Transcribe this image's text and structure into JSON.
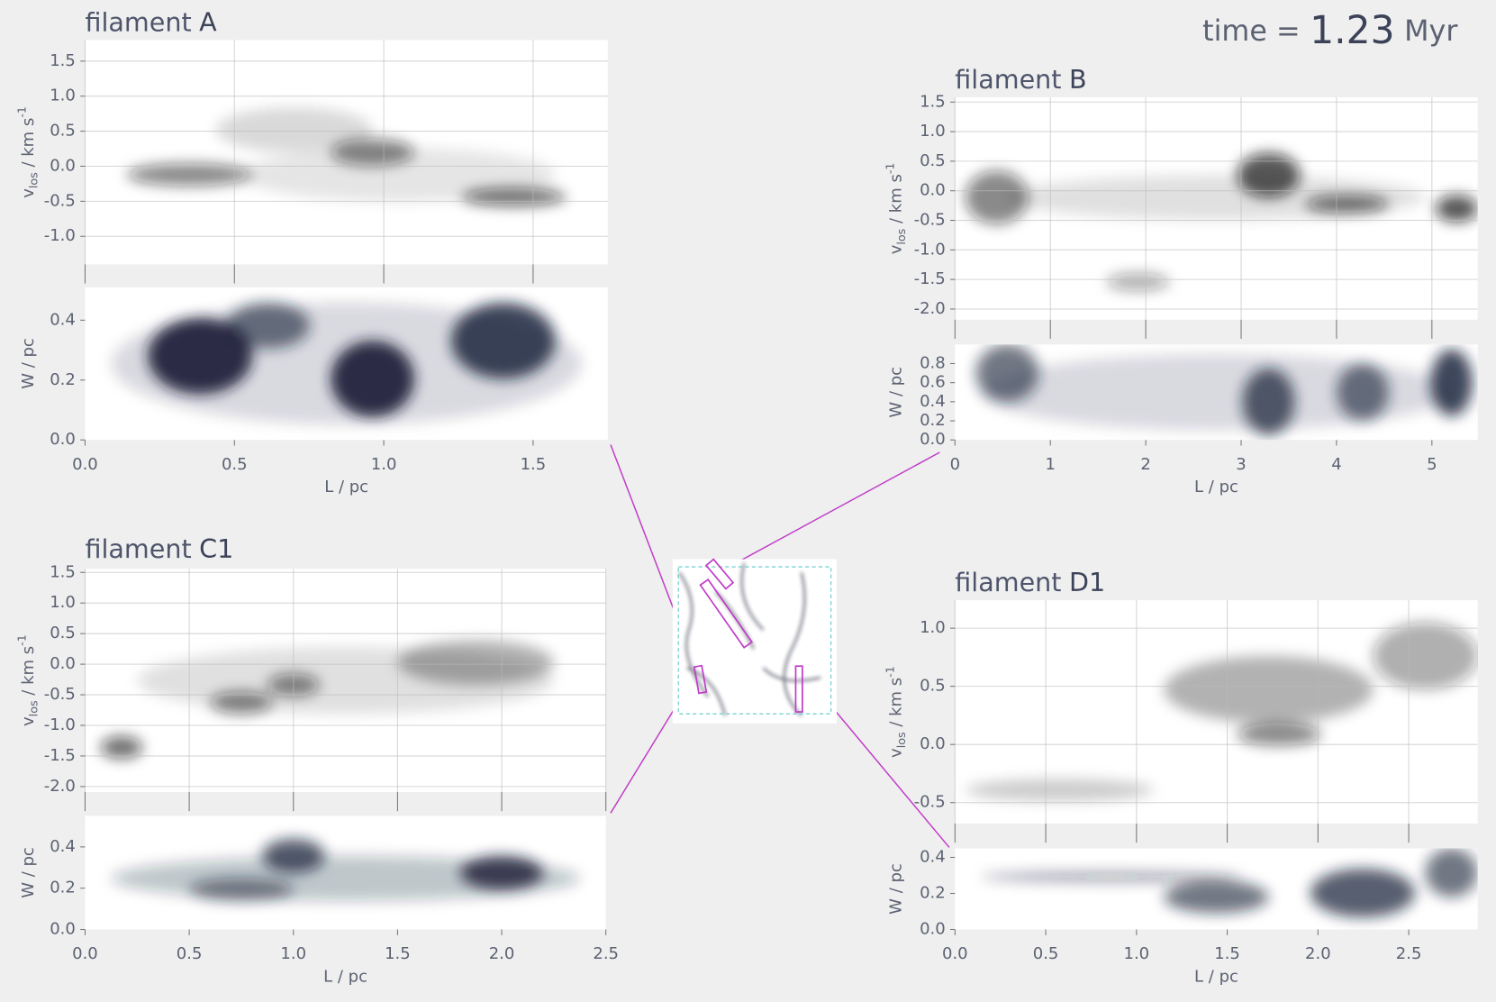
{
  "time_label": "time =",
  "time_value": 1.23,
  "time_unit": "Myr",
  "chart_data": [
    {
      "type": "image",
      "title_prefix": "filament",
      "title": "A",
      "xlabel": "L / pc",
      "xlim": [
        0,
        1.75
      ],
      "xticks": [
        {
          "value": 0,
          "label": "0.0"
        },
        0.5,
        {
          "value": 1,
          "label": "1.0"
        },
        1.5
      ],
      "panels": [
        {
          "ylabel": {
            "main": "v",
            "sub": "los",
            "rest": " / km s",
            "sup": "-1"
          },
          "ylim": [
            -1.4,
            1.8
          ],
          "grid": true,
          "yticks": [
            1.5,
            {
              "value": 1,
              "label": "1.0"
            },
            0.5,
            {
              "value": 0,
              "label": "0.0"
            },
            -0.5,
            {
              "value": -1,
              "label": "-1.0"
            }
          ]
        },
        {
          "ylabel": {
            "main": "W / pc"
          },
          "ylim": [
            0,
            0.51
          ],
          "grid": false,
          "yticks": [
            {
              "value": 0,
              "label": "0.0"
            },
            0.2,
            0.4
          ]
        }
      ]
    },
    {
      "type": "image",
      "title_prefix": "filament",
      "title": "B",
      "xlabel": "L / pc",
      "xlim": [
        0,
        5.48
      ],
      "xticks": [
        0,
        1,
        2,
        3,
        4,
        5
      ],
      "panels": [
        {
          "ylabel": {
            "main": "v",
            "sub": "los",
            "rest": " / km s",
            "sup": "-1"
          },
          "ylim": [
            -2.18,
            1.58
          ],
          "grid": true,
          "yticks": [
            1.5,
            {
              "value": 1,
              "label": "1.0"
            },
            0.5,
            {
              "value": 0,
              "label": "0.0"
            },
            -0.5,
            {
              "value": -1,
              "label": "-1.0"
            },
            -1.5,
            {
              "value": -2,
              "label": "-2.0"
            }
          ]
        },
        {
          "ylabel": {
            "main": "W / pc"
          },
          "ylim": [
            0,
            1.0
          ],
          "grid": false,
          "yticks": [
            {
              "value": 0,
              "label": "0.0"
            },
            0.2,
            0.4,
            0.6,
            0.8
          ]
        }
      ]
    },
    {
      "type": "image",
      "title_prefix": "filament",
      "title": "C1",
      "xlabel": "L / pc",
      "xlim": [
        0,
        2.5
      ],
      "xticks": [
        {
          "value": 0,
          "label": "0.0"
        },
        0.5,
        {
          "value": 1,
          "label": "1.0"
        },
        1.5,
        {
          "value": 2,
          "label": "2.0"
        },
        2.5
      ],
      "panels": [
        {
          "ylabel": {
            "main": "v",
            "sub": "los",
            "rest": " / km s",
            "sup": "-1"
          },
          "ylim": [
            -2.09,
            1.56
          ],
          "grid": true,
          "yticks": [
            1.5,
            {
              "value": 1,
              "label": "1.0"
            },
            0.5,
            {
              "value": 0,
              "label": "0.0"
            },
            -0.5,
            {
              "value": -1,
              "label": "-1.0"
            },
            -1.5,
            {
              "value": -2,
              "label": "-2.0"
            }
          ]
        },
        {
          "ylabel": {
            "main": "W / pc"
          },
          "ylim": [
            0,
            0.55
          ],
          "grid": false,
          "yticks": [
            {
              "value": 0,
              "label": "0.0"
            },
            0.2,
            0.4
          ]
        }
      ]
    },
    {
      "type": "image",
      "title_prefix": "filament",
      "title": "D1",
      "xlabel": "L / pc",
      "xlim": [
        0,
        2.88
      ],
      "xticks": [
        {
          "value": 0,
          "label": "0.0"
        },
        0.5,
        {
          "value": 1,
          "label": "1.0"
        },
        1.5,
        {
          "value": 2,
          "label": "2.0"
        },
        2.5
      ],
      "panels": [
        {
          "ylabel": {
            "main": "v",
            "sub": "los",
            "rest": " / km s",
            "sup": "-1"
          },
          "ylim": [
            -0.68,
            1.24
          ],
          "grid": true,
          "yticks": [
            {
              "value": 1,
              "label": "1.0"
            },
            0.5,
            {
              "value": 0,
              "label": "0.0"
            },
            -0.5
          ]
        },
        {
          "ylabel": {
            "main": "W / pc"
          },
          "ylim": [
            0,
            0.45
          ],
          "grid": false,
          "yticks": [
            {
              "value": 0,
              "label": "0.0"
            },
            0.2,
            0.4
          ]
        }
      ]
    }
  ]
}
